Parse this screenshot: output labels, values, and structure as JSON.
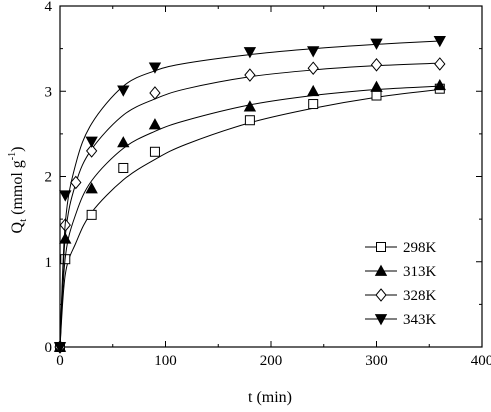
{
  "chart_data": {
    "type": "line",
    "xlabel": "t (min)",
    "ylabel_main": "Q",
    "ylabel_sub": "t",
    "ylabel_unit": " (mmol g",
    "ylabel_sup": "-1",
    "ylabel_close": ")",
    "xlim": [
      0,
      400
    ],
    "ylim": [
      0,
      4
    ],
    "xticks": [
      0,
      100,
      200,
      300,
      400
    ],
    "yticks": [
      0,
      1,
      2,
      3,
      4
    ],
    "xtick_labels": [
      "0",
      "100",
      "200",
      "300",
      "400"
    ],
    "ytick_labels": [
      "0",
      "1",
      "2",
      "3",
      "4"
    ],
    "grid": false,
    "legend_position": "bottom-right",
    "series": [
      {
        "name": "298K",
        "marker": "square-open",
        "x": [
          0,
          5,
          30,
          60,
          90,
          180,
          240,
          300,
          360
        ],
        "y": [
          0,
          1.03,
          1.55,
          2.1,
          2.29,
          2.66,
          2.85,
          2.95,
          3.03
        ],
        "fit": [
          [
            0,
            0
          ],
          [
            5,
            0.85
          ],
          [
            15,
            1.22
          ],
          [
            30,
            1.58
          ],
          [
            60,
            1.96
          ],
          [
            90,
            2.2
          ],
          [
            120,
            2.38
          ],
          [
            180,
            2.63
          ],
          [
            240,
            2.8
          ],
          [
            300,
            2.93
          ],
          [
            360,
            3.02
          ]
        ]
      },
      {
        "name": "313K",
        "marker": "triangle-up-filled",
        "x": [
          0,
          5,
          30,
          60,
          90,
          180,
          240,
          300,
          360
        ],
        "y": [
          0,
          1.27,
          1.86,
          2.4,
          2.61,
          2.82,
          3.0,
          3.05,
          3.07
        ],
        "fit": [
          [
            0,
            0
          ],
          [
            5,
            1.05
          ],
          [
            15,
            1.56
          ],
          [
            30,
            1.95
          ],
          [
            60,
            2.33
          ],
          [
            90,
            2.53
          ],
          [
            120,
            2.66
          ],
          [
            180,
            2.84
          ],
          [
            240,
            2.95
          ],
          [
            300,
            3.02
          ],
          [
            360,
            3.06
          ]
        ]
      },
      {
        "name": "328K",
        "marker": "diamond-open",
        "x": [
          0,
          5,
          15,
          30,
          90,
          180,
          240,
          300,
          360
        ],
        "y": [
          0,
          1.43,
          1.93,
          2.3,
          2.98,
          3.19,
          3.27,
          3.31,
          3.32
        ],
        "fit": [
          [
            0,
            0
          ],
          [
            5,
            1.3
          ],
          [
            15,
            1.92
          ],
          [
            30,
            2.32
          ],
          [
            60,
            2.72
          ],
          [
            90,
            2.91
          ],
          [
            120,
            3.03
          ],
          [
            180,
            3.17
          ],
          [
            240,
            3.25
          ],
          [
            300,
            3.3
          ],
          [
            360,
            3.33
          ]
        ]
      },
      {
        "name": "343K",
        "marker": "triangle-down-filled",
        "x": [
          0,
          5,
          30,
          60,
          90,
          180,
          240,
          300,
          360
        ],
        "y": [
          0,
          1.78,
          2.41,
          3.01,
          3.28,
          3.46,
          3.47,
          3.56,
          3.59
        ],
        "fit": [
          [
            0,
            0
          ],
          [
            5,
            1.45
          ],
          [
            15,
            2.15
          ],
          [
            30,
            2.62
          ],
          [
            60,
            3.06
          ],
          [
            90,
            3.24
          ],
          [
            120,
            3.33
          ],
          [
            180,
            3.43
          ],
          [
            240,
            3.5
          ],
          [
            300,
            3.55
          ],
          [
            360,
            3.59
          ]
        ]
      }
    ]
  }
}
